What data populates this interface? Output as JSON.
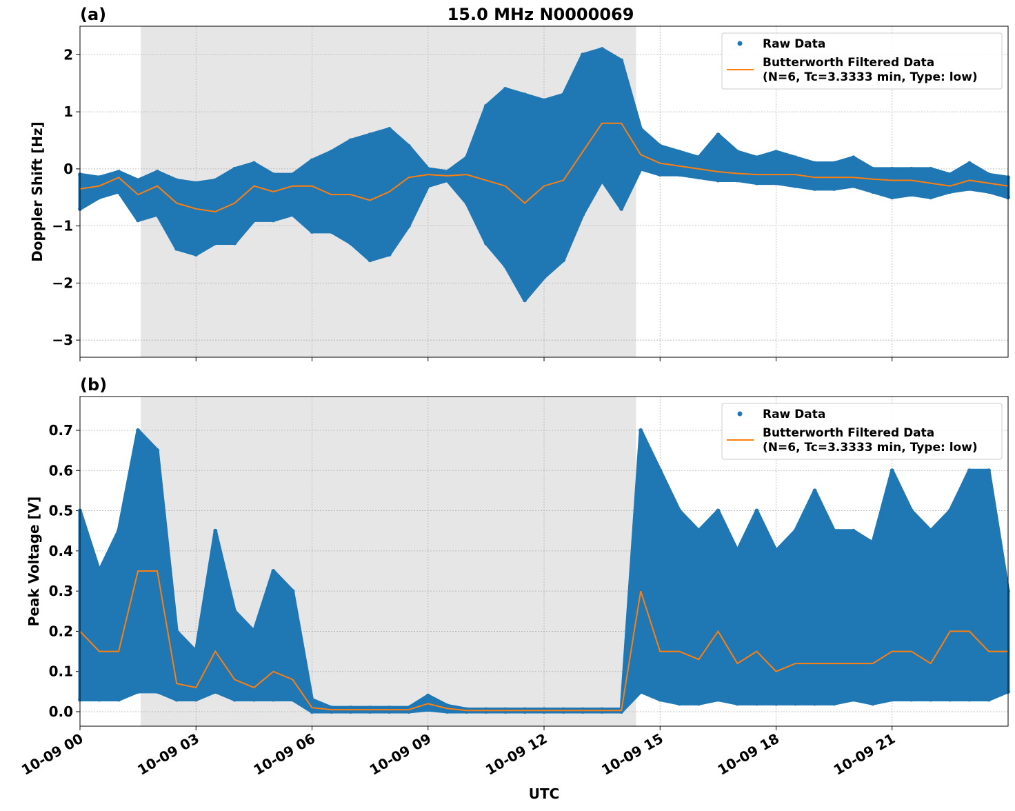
{
  "figure": {
    "title": "15.0 MHz N0000069",
    "xlabel": "UTC"
  },
  "colors": {
    "raw": "#1f77b4",
    "filtered": "#ff7f0e",
    "shade": "#e6e6e6",
    "grid": "#b0b0b0"
  },
  "legend": {
    "raw": "Raw Data",
    "filtered_line1": "Butterworth Filtered Data",
    "filtered_line2": "(N=6, Tc=3.3333 min, Type: low)"
  },
  "chart_data": [
    {
      "panel_label": "(a)",
      "type": "scatter+line",
      "ylabel": "Doppler Shift [Hz]",
      "xlim": [
        "10-09 00:00",
        "10-10 00:00"
      ],
      "ylim": [
        -3.3,
        2.5
      ],
      "yticks": [
        -3,
        -2,
        -1,
        0,
        1,
        2
      ],
      "ytick_labels": [
        "−3",
        "−2",
        "−1",
        "0",
        "1",
        "2"
      ],
      "xticks_hours": [
        0,
        3,
        6,
        9,
        12,
        15,
        18,
        21
      ],
      "xtick_labels": [
        "10-09 00",
        "10-09 03",
        "10-09 06",
        "10-09 09",
        "10-09 12",
        "10-09 15",
        "10-09 18",
        "10-09 21"
      ],
      "shaded_hours": [
        1.57,
        14.38
      ],
      "grid": true,
      "legend_position": "upper right",
      "hours": [
        0,
        0.5,
        1,
        1.5,
        2,
        2.5,
        3,
        3.5,
        4,
        4.5,
        5,
        5.5,
        6,
        6.5,
        7,
        7.5,
        8,
        8.5,
        9,
        9.5,
        10,
        10.5,
        11,
        11.5,
        12,
        12.5,
        13,
        13.5,
        14,
        14.5,
        15,
        15.5,
        16,
        16.5,
        17,
        17.5,
        18,
        18.5,
        19,
        19.5,
        20,
        20.5,
        21,
        21.5,
        22,
        22.5,
        23,
        23.5,
        24
      ],
      "raw_min": [
        -0.7,
        -0.5,
        -0.4,
        -0.9,
        -0.8,
        -1.4,
        -1.5,
        -1.3,
        -1.3,
        -0.9,
        -0.9,
        -0.8,
        -1.1,
        -1.1,
        -1.3,
        -1.6,
        -1.5,
        -1.0,
        -0.3,
        -0.2,
        -0.6,
        -1.3,
        -1.7,
        -2.3,
        -1.9,
        -1.6,
        -0.8,
        -0.2,
        -0.7,
        0.0,
        -0.1,
        -0.1,
        -0.15,
        -0.2,
        -0.2,
        -0.25,
        -0.25,
        -0.3,
        -0.35,
        -0.35,
        -0.3,
        -0.4,
        -0.5,
        -0.45,
        -0.5,
        -0.4,
        -0.35,
        -0.4,
        -0.5
      ],
      "raw_max": [
        -0.1,
        -0.15,
        -0.05,
        -0.2,
        -0.05,
        -0.2,
        -0.25,
        -0.2,
        0.0,
        0.1,
        -0.1,
        -0.1,
        0.15,
        0.3,
        0.5,
        0.6,
        0.7,
        0.4,
        0.0,
        -0.05,
        0.2,
        1.1,
        1.4,
        1.3,
        1.2,
        1.3,
        2.0,
        2.1,
        1.9,
        0.7,
        0.4,
        0.3,
        0.2,
        0.6,
        0.3,
        0.2,
        0.3,
        0.2,
        0.1,
        0.1,
        0.2,
        0.0,
        0.0,
        0.0,
        0.0,
        -0.1,
        0.1,
        -0.1,
        -0.15
      ],
      "filtered": [
        -0.35,
        -0.3,
        -0.15,
        -0.45,
        -0.3,
        -0.6,
        -0.7,
        -0.75,
        -0.6,
        -0.3,
        -0.4,
        -0.3,
        -0.3,
        -0.45,
        -0.45,
        -0.55,
        -0.4,
        -0.15,
        -0.1,
        -0.12,
        -0.1,
        -0.2,
        -0.3,
        -0.6,
        -0.3,
        -0.2,
        0.3,
        0.8,
        0.8,
        0.25,
        0.1,
        0.05,
        0.0,
        -0.05,
        -0.08,
        -0.1,
        -0.1,
        -0.1,
        -0.15,
        -0.15,
        -0.15,
        -0.18,
        -0.2,
        -0.2,
        -0.25,
        -0.3,
        -0.2,
        -0.25,
        -0.3
      ]
    },
    {
      "panel_label": "(b)",
      "type": "scatter+line",
      "ylabel": "Peak Voltage [V]",
      "xlim": [
        "10-09 00:00",
        "10-10 00:00"
      ],
      "ylim": [
        -0.036,
        0.784
      ],
      "yticks": [
        0,
        0.1,
        0.2,
        0.3,
        0.4,
        0.5,
        0.6,
        0.7
      ],
      "ytick_labels": [
        "0.0",
        "0.1",
        "0.2",
        "0.3",
        "0.4",
        "0.5",
        "0.6",
        "0.7"
      ],
      "xticks_hours": [
        0,
        3,
        6,
        9,
        12,
        15,
        18,
        21
      ],
      "xtick_labels": [
        "10-09 00",
        "10-09 03",
        "10-09 06",
        "10-09 09",
        "10-09 12",
        "10-09 15",
        "10-09 18",
        "10-09 21"
      ],
      "shaded_hours": [
        1.57,
        14.38
      ],
      "grid": true,
      "legend_position": "upper right",
      "hours": [
        0,
        0.5,
        1,
        1.5,
        2,
        2.5,
        3,
        3.5,
        4,
        4.5,
        5,
        5.5,
        6,
        6.5,
        7,
        7.5,
        8,
        8.5,
        9,
        9.5,
        10,
        10.5,
        11,
        11.5,
        12,
        12.5,
        13,
        13.5,
        14,
        14.5,
        15,
        15.5,
        16,
        16.5,
        17,
        17.5,
        18,
        18.5,
        19,
        19.5,
        20,
        20.5,
        21,
        21.5,
        22,
        22.5,
        23,
        23.5,
        24
      ],
      "raw_min": [
        0.03,
        0.03,
        0.03,
        0.05,
        0.05,
        0.03,
        0.03,
        0.05,
        0.03,
        0.03,
        0.03,
        0.03,
        0.0,
        0.0,
        0.0,
        0.0,
        0.0,
        0.0,
        0.005,
        0.0,
        0.0,
        0.0,
        0.0,
        0.0,
        0.0,
        0.0,
        0.0,
        0.0,
        0.0,
        0.05,
        0.03,
        0.02,
        0.02,
        0.03,
        0.02,
        0.02,
        0.02,
        0.02,
        0.02,
        0.02,
        0.03,
        0.02,
        0.03,
        0.03,
        0.03,
        0.03,
        0.03,
        0.03,
        0.05
      ],
      "raw_max": [
        0.5,
        0.35,
        0.45,
        0.7,
        0.65,
        0.2,
        0.15,
        0.45,
        0.25,
        0.2,
        0.35,
        0.3,
        0.03,
        0.01,
        0.01,
        0.01,
        0.01,
        0.01,
        0.04,
        0.015,
        0.006,
        0.006,
        0.006,
        0.006,
        0.006,
        0.006,
        0.006,
        0.006,
        0.006,
        0.7,
        0.6,
        0.5,
        0.45,
        0.5,
        0.4,
        0.5,
        0.4,
        0.45,
        0.55,
        0.45,
        0.45,
        0.42,
        0.6,
        0.5,
        0.45,
        0.5,
        0.6,
        0.6,
        0.3
      ],
      "filtered": [
        0.2,
        0.15,
        0.15,
        0.35,
        0.35,
        0.07,
        0.06,
        0.15,
        0.08,
        0.06,
        0.1,
        0.08,
        0.01,
        0.005,
        0.005,
        0.005,
        0.005,
        0.005,
        0.02,
        0.008,
        0.003,
        0.003,
        0.003,
        0.003,
        0.003,
        0.003,
        0.003,
        0.003,
        0.003,
        0.3,
        0.15,
        0.15,
        0.13,
        0.2,
        0.12,
        0.15,
        0.1,
        0.12,
        0.12,
        0.12,
        0.12,
        0.12,
        0.15,
        0.15,
        0.12,
        0.2,
        0.2,
        0.15,
        0.15
      ]
    }
  ]
}
